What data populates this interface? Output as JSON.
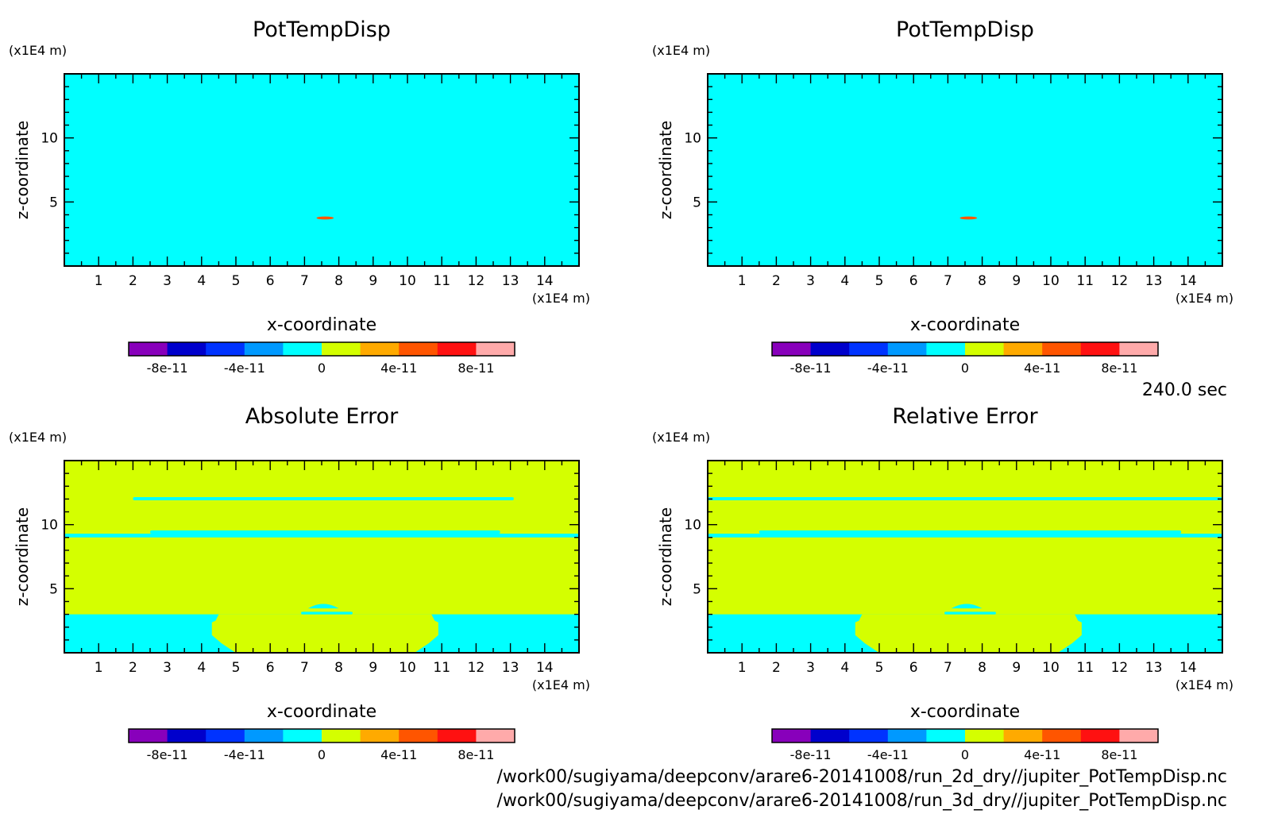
{
  "time_label": "240.0 sec",
  "file_lines": [
    "/work00/sugiyama/deepconv/arare6-20141008/run_2d_dry//jupiter_PotTempDisp.nc",
    "/work00/sugiyama/deepconv/arare6-20141008/run_3d_dry//jupiter_PotTempDisp.nc"
  ],
  "colors": {
    "background_field": "#d4ff00",
    "zero_band": "#00ffff",
    "perturbation": "#ff5500",
    "frame": "#000000"
  },
  "colorbar": {
    "colors": [
      "#8800bb",
      "#0000cc",
      "#0033ff",
      "#0099ff",
      "#00ffff",
      "#d4ff00",
      "#ffaa00",
      "#ff5500",
      "#ff1111",
      "#ffaaaa"
    ],
    "tick_labels": [
      "-8e-11",
      "-4e-11",
      "0",
      "4e-11",
      "8e-11"
    ]
  },
  "chart_data": [
    {
      "type": "heatmap",
      "title": "PotTempDisp",
      "xlabel": "x-coordinate",
      "ylabel": "z-coordinate",
      "x_unit_label": "(x1E4 m)",
      "y_unit_label": "(x1E4 m)",
      "xlim": [
        0,
        15
      ],
      "ylim": [
        0,
        15
      ],
      "x_ticks": [
        1,
        2,
        3,
        4,
        5,
        6,
        7,
        8,
        9,
        10,
        11,
        12,
        13,
        14
      ],
      "y_ticks": [
        5,
        10
      ],
      "background_value": 0,
      "features": [
        {
          "kind": "blob",
          "x_center": 7.6,
          "z_center": 3.75,
          "half_width": 0.25,
          "half_height": 0.12,
          "value": 7e-11
        }
      ]
    },
    {
      "type": "heatmap",
      "title": "PotTempDisp",
      "xlabel": "x-coordinate",
      "ylabel": "z-coordinate",
      "x_unit_label": "(x1E4 m)",
      "y_unit_label": "(x1E4 m)",
      "xlim": [
        0,
        15
      ],
      "ylim": [
        0,
        15
      ],
      "x_ticks": [
        1,
        2,
        3,
        4,
        5,
        6,
        7,
        8,
        9,
        10,
        11,
        12,
        13,
        14
      ],
      "y_ticks": [
        5,
        10
      ],
      "background_value": 0,
      "features": [
        {
          "kind": "blob",
          "x_center": 7.6,
          "z_center": 3.75,
          "half_width": 0.25,
          "half_height": 0.12,
          "value": 7e-11
        }
      ]
    },
    {
      "type": "heatmap",
      "title": "Absolute Error",
      "xlabel": "x-coordinate",
      "ylabel": "z-coordinate",
      "x_unit_label": "(x1E4 m)",
      "y_unit_label": "(x1E4 m)",
      "xlim": [
        0,
        15
      ],
      "ylim": [
        0,
        15
      ],
      "x_ticks": [
        1,
        2,
        3,
        4,
        5,
        6,
        7,
        8,
        9,
        10,
        11,
        12,
        13,
        14
      ],
      "y_ticks": [
        5,
        10
      ],
      "background_value": 1e-12,
      "features": [
        {
          "kind": "band",
          "x0": 2.0,
          "x1": 13.1,
          "z0": 11.9,
          "z1": 12.15,
          "value": 0
        },
        {
          "kind": "band",
          "x0": 0,
          "x1": 15,
          "z0": 9.0,
          "z1": 9.3,
          "value": 0
        },
        {
          "kind": "band",
          "x0": 2.5,
          "x1": 12.7,
          "z0": 9.3,
          "z1": 9.55,
          "value": 0
        },
        {
          "kind": "bottom",
          "z_top": 3.0,
          "inner_x0": 4.5,
          "inner_x1": 10.7,
          "bulge_x0": 4.3,
          "bulge_x1": 10.9,
          "bulge_z": 2.0,
          "value": 0
        },
        {
          "kind": "cap",
          "x_center": 7.55,
          "z_center": 3.6,
          "half_width": 0.45,
          "half_height": 0.35,
          "value": 0
        },
        {
          "kind": "band",
          "x0": 6.9,
          "x1": 8.4,
          "z0": 3.0,
          "z1": 3.2,
          "value": 0
        }
      ]
    },
    {
      "type": "heatmap",
      "title": "Relative Error",
      "xlabel": "x-coordinate",
      "ylabel": "z-coordinate",
      "x_unit_label": "(x1E4 m)",
      "y_unit_label": "(x1E4 m)",
      "xlim": [
        0,
        15
      ],
      "ylim": [
        0,
        15
      ],
      "x_ticks": [
        1,
        2,
        3,
        4,
        5,
        6,
        7,
        8,
        9,
        10,
        11,
        12,
        13,
        14
      ],
      "y_ticks": [
        5,
        10
      ],
      "background_value": 1e-12,
      "features": [
        {
          "kind": "band",
          "x0": 0,
          "x1": 15,
          "z0": 11.9,
          "z1": 12.15,
          "value": 0
        },
        {
          "kind": "band",
          "x0": 0,
          "x1": 15,
          "z0": 9.0,
          "z1": 9.3,
          "value": 0
        },
        {
          "kind": "band",
          "x0": 1.5,
          "x1": 13.8,
          "z0": 9.3,
          "z1": 9.55,
          "value": 0
        },
        {
          "kind": "bottom",
          "z_top": 3.0,
          "inner_x0": 4.5,
          "inner_x1": 10.7,
          "bulge_x0": 4.3,
          "bulge_x1": 10.9,
          "bulge_z": 2.0,
          "value": 0
        },
        {
          "kind": "cap",
          "x_center": 7.55,
          "z_center": 3.6,
          "half_width": 0.45,
          "half_height": 0.35,
          "value": 0
        },
        {
          "kind": "band",
          "x0": 6.9,
          "x1": 8.4,
          "z0": 3.0,
          "z1": 3.2,
          "value": 0
        }
      ]
    }
  ]
}
